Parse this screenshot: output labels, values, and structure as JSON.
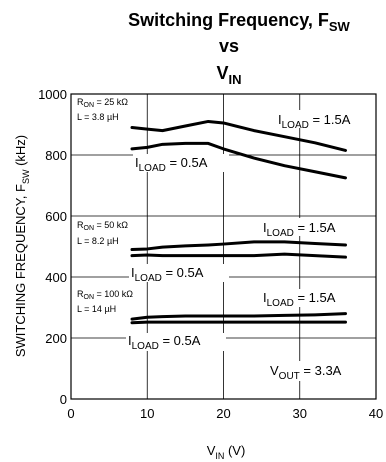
{
  "chart_data": {
    "type": "line",
    "title": {
      "line1": "Switching Frequency, F",
      "line1_sub": "SW",
      "line2": "vs",
      "line3": "V",
      "line3_sub": "IN"
    },
    "xlabel": {
      "main": "V",
      "sub": "IN",
      "tail": " (V)"
    },
    "ylabel": {
      "main": "SWITCHING FREQUENCY, F",
      "sub": "SW",
      "tail": " (kHz)"
    },
    "xlim": [
      0,
      40
    ],
    "ylim": [
      0,
      1000
    ],
    "xticks": [
      0,
      10,
      20,
      30,
      40
    ],
    "yticks": [
      0,
      200,
      400,
      600,
      800,
      1000
    ],
    "grid": true,
    "series": [
      {
        "name": "ILOAD = 1.5A (RON = 25 kΩ)",
        "x": [
          8,
          10,
          12,
          15,
          18,
          20,
          24,
          28,
          32,
          36
        ],
        "y": [
          890,
          885,
          880,
          895,
          910,
          905,
          880,
          860,
          840,
          815
        ]
      },
      {
        "name": "ILOAD = 0.5A (RON = 25 kΩ)",
        "x": [
          8,
          10,
          12,
          15,
          18,
          20,
          24,
          28,
          32,
          36
        ],
        "y": [
          820,
          825,
          835,
          838,
          838,
          820,
          790,
          765,
          745,
          725
        ]
      },
      {
        "name": "ILOAD = 1.5A (RON = 50 kΩ)",
        "x": [
          8,
          10,
          12,
          15,
          18,
          20,
          24,
          28,
          32,
          36
        ],
        "y": [
          490,
          492,
          498,
          502,
          505,
          508,
          515,
          515,
          510,
          505
        ]
      },
      {
        "name": "ILOAD = 0.5A (RON = 50 kΩ)",
        "x": [
          8,
          10,
          12,
          15,
          18,
          20,
          24,
          28,
          32,
          36
        ],
        "y": [
          470,
          472,
          470,
          470,
          470,
          470,
          470,
          475,
          470,
          465
        ]
      },
      {
        "name": "ILOAD = 1.5A (RON = 100 kΩ)",
        "x": [
          8,
          10,
          12,
          15,
          18,
          20,
          24,
          28,
          32,
          36
        ],
        "y": [
          262,
          268,
          270,
          272,
          272,
          272,
          272,
          274,
          276,
          280
        ]
      },
      {
        "name": "ILOAD = 0.5A (RON = 100 kΩ)",
        "x": [
          8,
          10,
          12,
          15,
          18,
          20,
          24,
          28,
          32,
          36
        ],
        "y": [
          250,
          252,
          252,
          252,
          252,
          252,
          252,
          252,
          252,
          252
        ]
      }
    ],
    "annotations": {
      "ron25": {
        "l1a": "R",
        "l1b": "ON",
        "l1c": " = 25 kΩ",
        "l2": "L = 3.8 µH"
      },
      "ron50": {
        "l1a": "R",
        "l1b": "ON",
        "l1c": " = 50 kΩ",
        "l2": "L = 8.2 µH"
      },
      "ron100": {
        "l1a": "R",
        "l1b": "ON",
        "l1c": " = 100 kΩ",
        "l2": "L = 14 µH"
      },
      "iload15": {
        "a": "I",
        "b": "LOAD",
        "c": " = 1.5A"
      },
      "iload05": {
        "a": "I",
        "b": "LOAD",
        "c": " = 0.5A"
      },
      "vout": {
        "a": "V",
        "b": "OUT",
        "c": " = 3.3A"
      }
    }
  }
}
